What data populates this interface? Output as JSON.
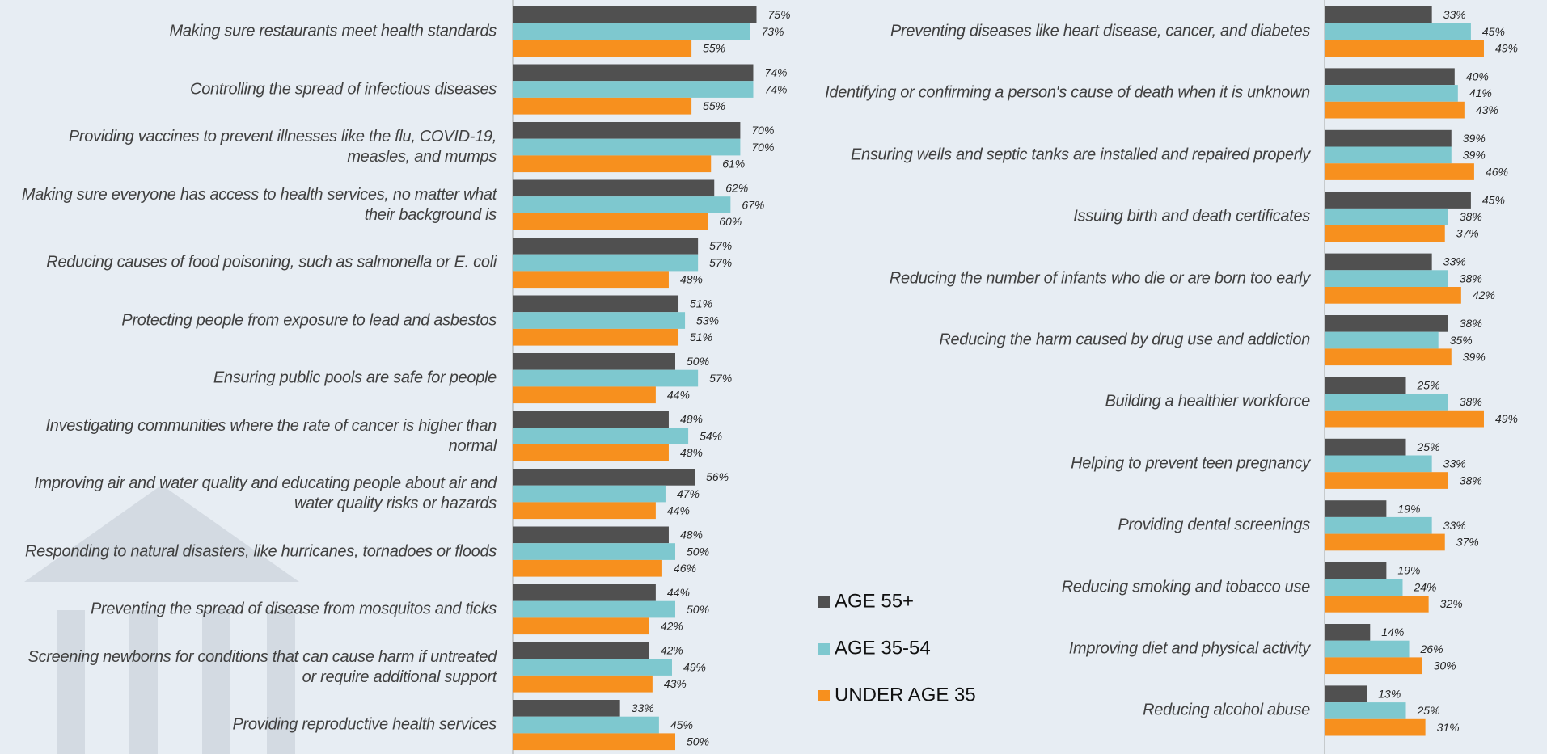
{
  "chart_data": [
    {
      "type": "bar",
      "categories": [
        "Making sure restaurants meet health standards",
        "Controlling the spread of infectious diseases",
        "Providing vaccines to prevent illnesses like the flu, COVID-19, measles, and mumps",
        "Making sure everyone has access to health services, no matter what their background is",
        "Reducing causes of food poisoning, such as salmonella or E. coli",
        "Protecting people from exposure to lead and asbestos",
        "Ensuring public pools are safe for people",
        "Investigating communities where the rate of cancer is higher than normal",
        "Improving air and water quality and educating people about air and water quality risks or hazards",
        "Responding to natural disasters, like hurricanes, tornadoes or floods",
        "Preventing the spread of disease from mosquitos and ticks",
        "Screening newborns for conditions that can cause harm if untreated or require additional support",
        "Providing reproductive health services"
      ],
      "series": [
        {
          "name": "AGE 55+",
          "color": "#505050",
          "values": [
            75,
            74,
            70,
            62,
            57,
            51,
            50,
            48,
            56,
            48,
            44,
            42,
            33
          ],
          "value_labels": [
            "75%",
            "74%",
            "70%",
            "62%",
            "57%",
            "51%",
            "50%",
            "48%",
            "56%",
            "48%",
            "44%",
            "42%",
            "33%"
          ]
        },
        {
          "name": "AGE 35-54",
          "color": "#7ec8cf",
          "values": [
            73,
            74,
            70,
            67,
            57,
            53,
            57,
            54,
            47,
            50,
            50,
            49,
            45
          ],
          "value_labels": [
            "73%",
            "74%",
            "70%",
            "67%",
            "57%",
            "53%",
            "57%",
            "54%",
            "47%",
            "50%",
            "50%",
            "49%",
            "45%"
          ]
        },
        {
          "name": "UNDER AGE 35",
          "color": "#f7901e",
          "values": [
            55,
            55,
            61,
            60,
            48,
            51,
            44,
            48,
            44,
            46,
            42,
            43,
            50
          ],
          "value_labels": [
            "55%",
            "55%",
            "61%",
            "60%",
            "48%",
            "51%",
            "44%",
            "48%",
            "44%",
            "46%",
            "42%",
            "43%",
            "50%"
          ]
        }
      ]
    },
    {
      "type": "bar",
      "categories": [
        "Preventing diseases like heart disease, cancer, and diabetes",
        "Identifying or confirming a person's cause of death when it is unknown",
        "Ensuring wells and septic tanks are installed and repaired properly",
        "Issuing birth and death certificates",
        "Reducing the number of infants who die or are born too early",
        "Reducing the harm caused by drug use and addiction",
        "Building a healthier workforce",
        "Helping to prevent teen pregnancy",
        "Providing dental screenings",
        "Reducing smoking and tobacco use",
        "Improving diet and physical activity",
        "Reducing alcohol abuse"
      ],
      "series": [
        {
          "color": "#505050",
          "values": [
            33,
            40,
            39,
            45,
            33,
            38,
            25,
            25,
            19,
            19,
            14,
            13
          ],
          "value_labels": [
            "33%",
            "40%",
            "39%",
            "45%",
            "33%",
            "38%",
            "25%",
            "25%",
            "19%",
            "19%",
            "14%",
            "13%"
          ]
        },
        {
          "color": "#7ec8cf",
          "values": [
            45,
            41,
            39,
            38,
            38,
            35,
            38,
            33,
            33,
            24,
            26,
            25
          ],
          "value_labels": [
            "45%",
            "41%",
            "39%",
            "38%",
            "38%",
            "35%",
            "38%",
            "33%",
            "33%",
            "24%",
            "26%",
            "25%"
          ]
        },
        {
          "color": "#f7901e",
          "values": [
            49,
            43,
            46,
            37,
            42,
            39,
            49,
            38,
            37,
            32,
            30,
            31
          ],
          "value_labels": [
            "49%",
            "43%",
            "46%",
            "37%",
            "42%",
            "39%",
            "49%",
            "38%",
            "37%",
            "32%",
            "30%",
            "31%"
          ]
        }
      ]
    }
  ]
}
